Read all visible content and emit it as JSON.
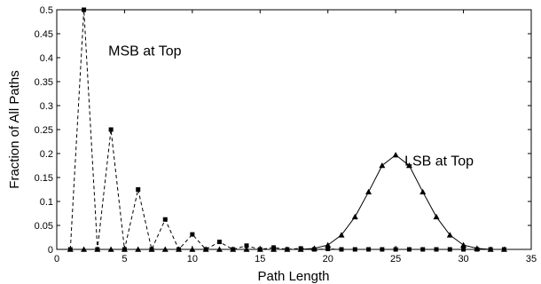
{
  "chart_data": {
    "type": "line",
    "title": "",
    "xlabel": "Path Length",
    "ylabel": "Fraction of All Paths",
    "xlim": [
      0,
      35
    ],
    "ylim": [
      0,
      0.5
    ],
    "xticks": [
      0,
      5,
      10,
      15,
      20,
      25,
      30,
      35
    ],
    "yticks": [
      0,
      0.05,
      0.1,
      0.15,
      0.2,
      0.25,
      0.3,
      0.35,
      0.4,
      0.45,
      0.5
    ],
    "ytick_labels": [
      "0",
      "0.05",
      "0.1",
      "0.15",
      "0.2",
      "0.25",
      "0.3",
      "0.35",
      "0.4",
      "0.45",
      "0.5"
    ],
    "grid": false,
    "series": [
      {
        "label": "MSB at Top",
        "marker": "square",
        "linestyle": "dashed",
        "x": [
          1,
          2,
          3,
          4,
          5,
          6,
          7,
          8,
          9,
          10,
          11,
          12,
          13,
          14,
          15,
          16,
          17,
          18,
          19,
          20,
          21,
          22,
          23,
          24,
          25,
          26,
          27,
          28,
          29,
          30,
          31,
          32,
          33
        ],
        "y": [
          0,
          0.5,
          0,
          0.25,
          0,
          0.125,
          0,
          0.0625,
          0,
          0.03125,
          0,
          0.015625,
          0,
          0.0078,
          0,
          0.0039,
          0,
          0.002,
          0,
          0.001,
          0,
          0,
          0,
          0,
          0,
          0,
          0,
          0,
          0,
          0,
          0,
          0,
          0
        ]
      },
      {
        "label": "LSB at Top",
        "marker": "triangle",
        "linestyle": "solid",
        "x": [
          1,
          2,
          3,
          4,
          5,
          6,
          7,
          8,
          9,
          10,
          11,
          12,
          13,
          14,
          15,
          16,
          17,
          18,
          19,
          20,
          21,
          22,
          23,
          24,
          25,
          26,
          27,
          28,
          29,
          30,
          31,
          32,
          33
        ],
        "y": [
          0,
          0,
          0,
          0,
          0,
          0,
          0,
          0,
          0,
          0,
          0,
          0,
          0,
          0,
          0,
          0,
          0,
          0,
          0.002,
          0.009,
          0.03,
          0.068,
          0.12,
          0.175,
          0.197,
          0.175,
          0.12,
          0.068,
          0.03,
          0.009,
          0.002,
          0,
          0
        ]
      }
    ],
    "annotations": [
      {
        "text": "MSB at Top",
        "x": 6.5,
        "y": 0.405
      },
      {
        "text": "LSB at Top",
        "x": 28.2,
        "y": 0.175
      }
    ]
  }
}
